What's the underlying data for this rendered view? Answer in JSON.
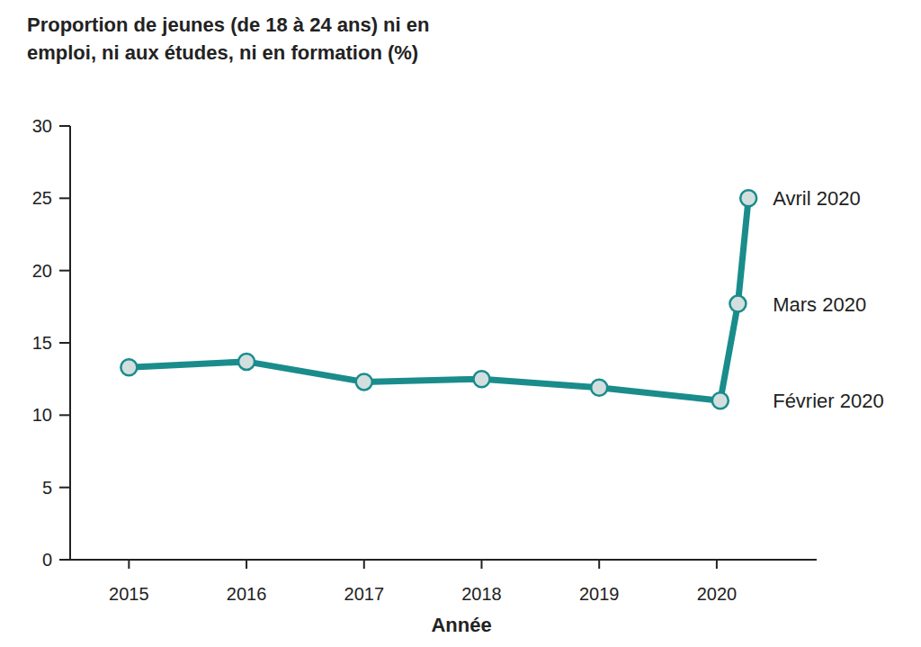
{
  "chart_data": {
    "type": "line",
    "title": "Proportion de jeunes (de 18 à 24 ans) ni en emploi, ni aux études, ni en formation (%)",
    "x_label": "Année",
    "x": [
      2015,
      2016,
      2017,
      2018,
      2019,
      2020.03,
      2020.18,
      2020.27
    ],
    "values": [
      13.3,
      13.7,
      12.3,
      12.5,
      11.9,
      11.0,
      17.7,
      25.0
    ],
    "color": "#1a8c8c",
    "marker": "circle",
    "xlim": [
      2014.5,
      2020.85
    ],
    "xticks": [
      2015,
      2016,
      2017,
      2018,
      2019,
      2020
    ],
    "ylim": [
      0,
      30
    ],
    "yticks": [
      0,
      5,
      10,
      15,
      20,
      25,
      30
    ],
    "grid": false,
    "annotations": [
      {
        "text": "Avril 2020",
        "x": 2020.27,
        "y": 25.0
      },
      {
        "text": "Mars 2020",
        "x": 2020.18,
        "y": 17.7
      },
      {
        "text": "Février 2020",
        "x": 2020.03,
        "y": 11.0
      }
    ]
  }
}
